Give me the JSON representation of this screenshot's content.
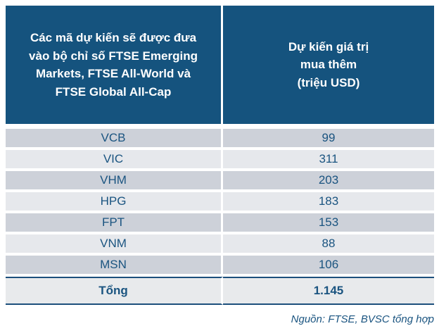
{
  "colors": {
    "header_bg": "#15537E",
    "header_text": "#FFFFFF",
    "row_dark": "#CDD1D9",
    "row_light": "#E6E8EC",
    "total_bg": "#E8EAEC",
    "text_blue": "#1A5480",
    "border_blue": "#1C4F7C"
  },
  "table": {
    "header": {
      "col1_lines": [
        "Các mã dự kiến sẽ được đưa",
        "vào bộ chỉ số FTSE Emerging",
        "Markets, FTSE All-World và",
        "FTSE Global All-Cap"
      ],
      "col2_lines": [
        "Dự kiến giá trị",
        "mua thêm",
        "(triệu USD)"
      ]
    },
    "rows": [
      {
        "ticker": "VCB",
        "value": "99"
      },
      {
        "ticker": "VIC",
        "value": "311"
      },
      {
        "ticker": "VHM",
        "value": "203"
      },
      {
        "ticker": "HPG",
        "value": "183"
      },
      {
        "ticker": "FPT",
        "value": "153"
      },
      {
        "ticker": "VNM",
        "value": "88"
      },
      {
        "ticker": "MSN",
        "value": "106"
      }
    ],
    "total": {
      "label": "Tổng",
      "value": "1.145"
    }
  },
  "footer": {
    "source": "Nguồn: FTSE, BVSC tổng hợp"
  },
  "chart_data": {
    "type": "table",
    "title": "Các mã dự kiến sẽ được đưa vào bộ chỉ số FTSE Emerging Markets, FTSE All-World và FTSE Global All-Cap",
    "columns": [
      "Các mã dự kiến sẽ được đưa vào bộ chỉ số FTSE Emerging Markets, FTSE All-World và FTSE Global All-Cap",
      "Dự kiến giá trị mua thêm (triệu USD)"
    ],
    "categories": [
      "VCB",
      "VIC",
      "VHM",
      "HPG",
      "FPT",
      "VNM",
      "MSN"
    ],
    "values": [
      99,
      311,
      203,
      183,
      153,
      88,
      106
    ],
    "total_label": "Tổng",
    "total_value": 1145,
    "source": "Nguồn: FTSE, BVSC tổng hợp"
  }
}
